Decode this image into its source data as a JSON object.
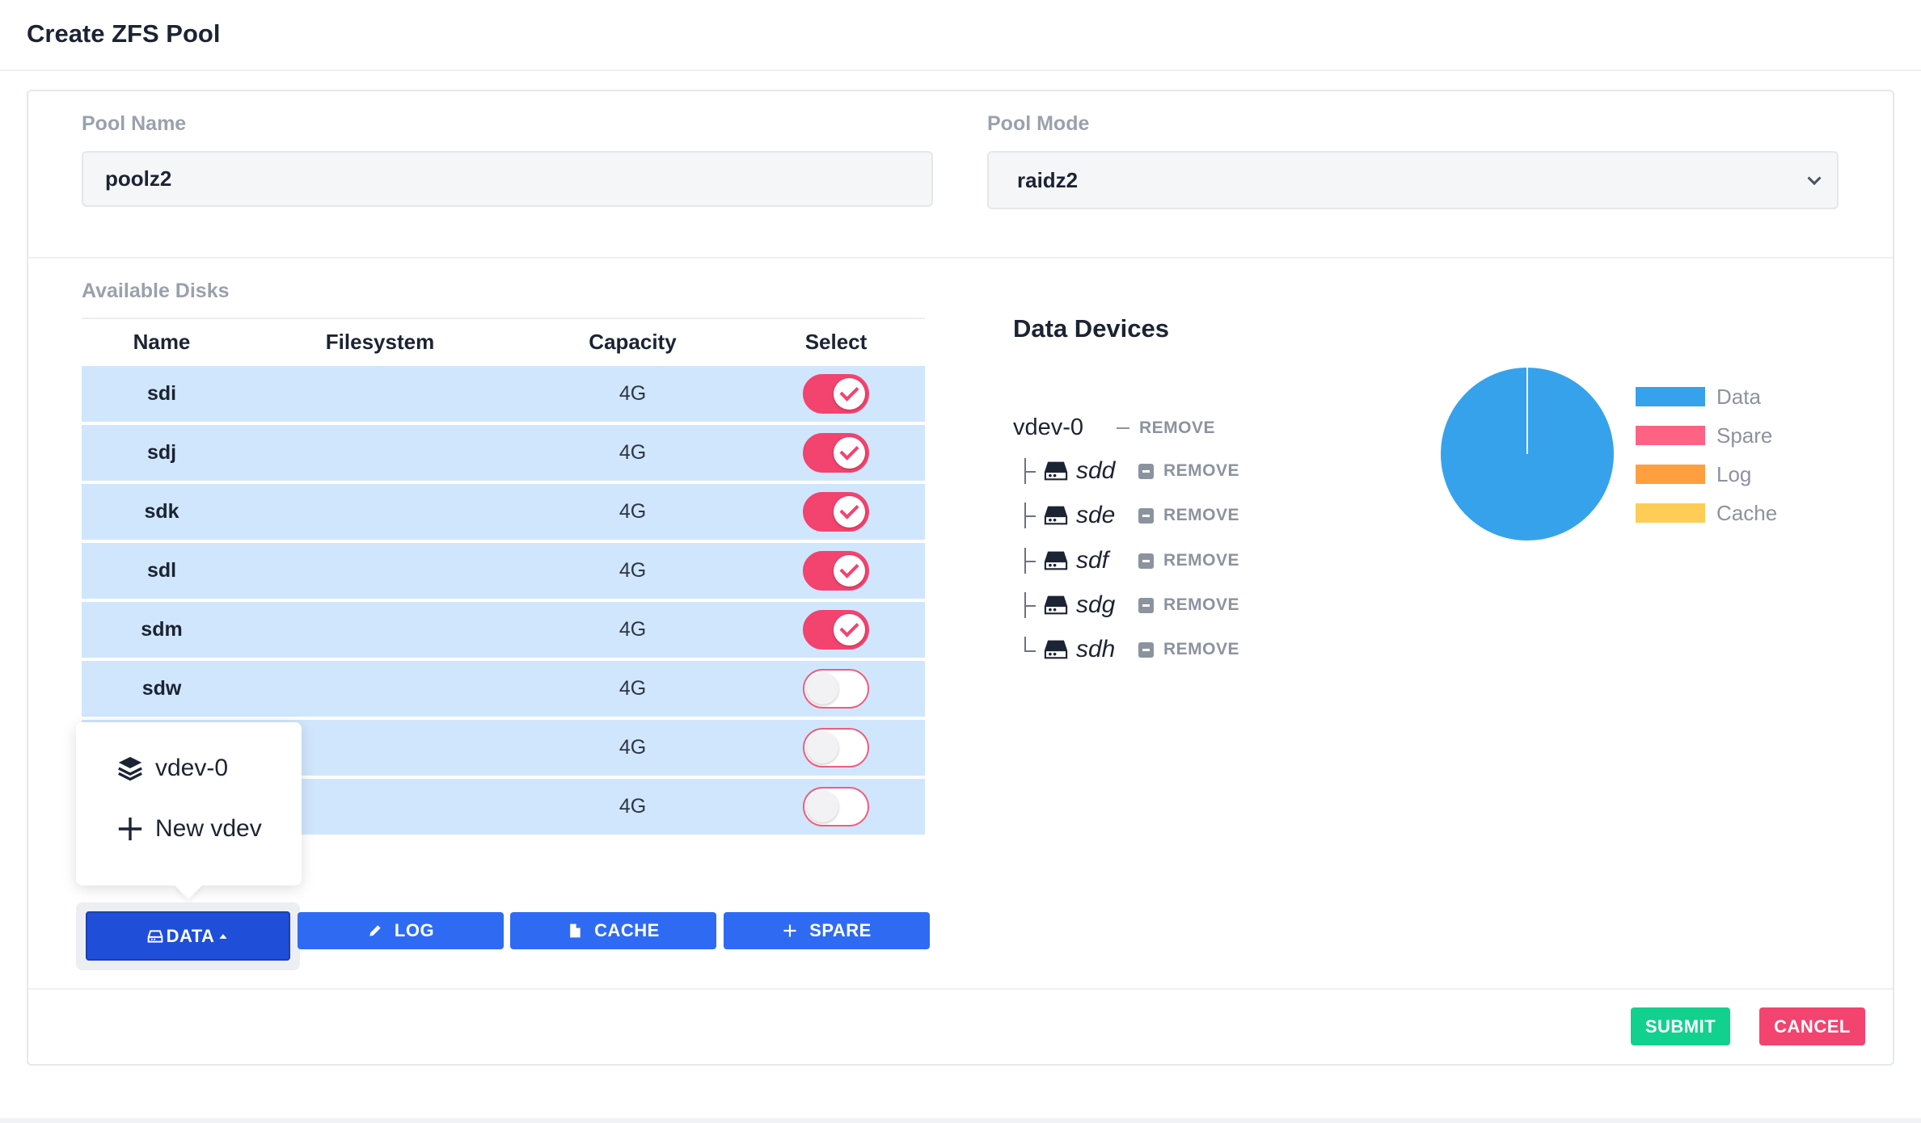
{
  "header": {
    "title": "Create ZFS Pool"
  },
  "form": {
    "pool_name_label": "Pool Name",
    "pool_name_value": "poolz2",
    "pool_mode_label": "Pool Mode",
    "pool_mode_value": "raidz2"
  },
  "disks": {
    "section_label": "Available Disks",
    "columns": [
      "Name",
      "Filesystem",
      "Capacity",
      "Select"
    ],
    "rows": [
      {
        "name": "sdi",
        "filesystem": "",
        "capacity": "4G",
        "selected": true
      },
      {
        "name": "sdj",
        "filesystem": "",
        "capacity": "4G",
        "selected": true
      },
      {
        "name": "sdk",
        "filesystem": "",
        "capacity": "4G",
        "selected": true
      },
      {
        "name": "sdl",
        "filesystem": "",
        "capacity": "4G",
        "selected": true
      },
      {
        "name": "sdm",
        "filesystem": "",
        "capacity": "4G",
        "selected": true
      },
      {
        "name": "sdw",
        "filesystem": "",
        "capacity": "4G",
        "selected": false
      },
      {
        "name": "",
        "filesystem": "",
        "capacity": "4G",
        "selected": false
      },
      {
        "name": "",
        "filesystem": "",
        "capacity": "4G",
        "selected": false
      }
    ]
  },
  "popover": {
    "vdev_label": "vdev-0",
    "new_vdev_label": "New vdev"
  },
  "actions": {
    "data": "DATA",
    "log": "LOG",
    "cache": "CACHE",
    "spare": "SPARE"
  },
  "data_devices": {
    "title": "Data Devices",
    "vdev_name": "vdev-0",
    "remove_label": "REMOVE",
    "disks": [
      "sdd",
      "sde",
      "sdf",
      "sdg",
      "sdh"
    ]
  },
  "chart_data": {
    "type": "pie",
    "categories": [
      "Data",
      "Spare",
      "Log",
      "Cache"
    ],
    "values": [
      100,
      0,
      0,
      0
    ],
    "colors": [
      "#36a2eb",
      "#ff6384",
      "#ff9f40",
      "#ffcd56"
    ],
    "legend_position": "right"
  },
  "footer": {
    "submit": "SUBMIT",
    "cancel": "CANCEL"
  },
  "colors": {
    "primary": "#2f6bf2",
    "primary_dark": "#1f4ed8",
    "submit": "#12d18e",
    "cancel": "#f3436f",
    "toggle_on": "#f3436f",
    "row_bg": "#d0e6fc"
  }
}
